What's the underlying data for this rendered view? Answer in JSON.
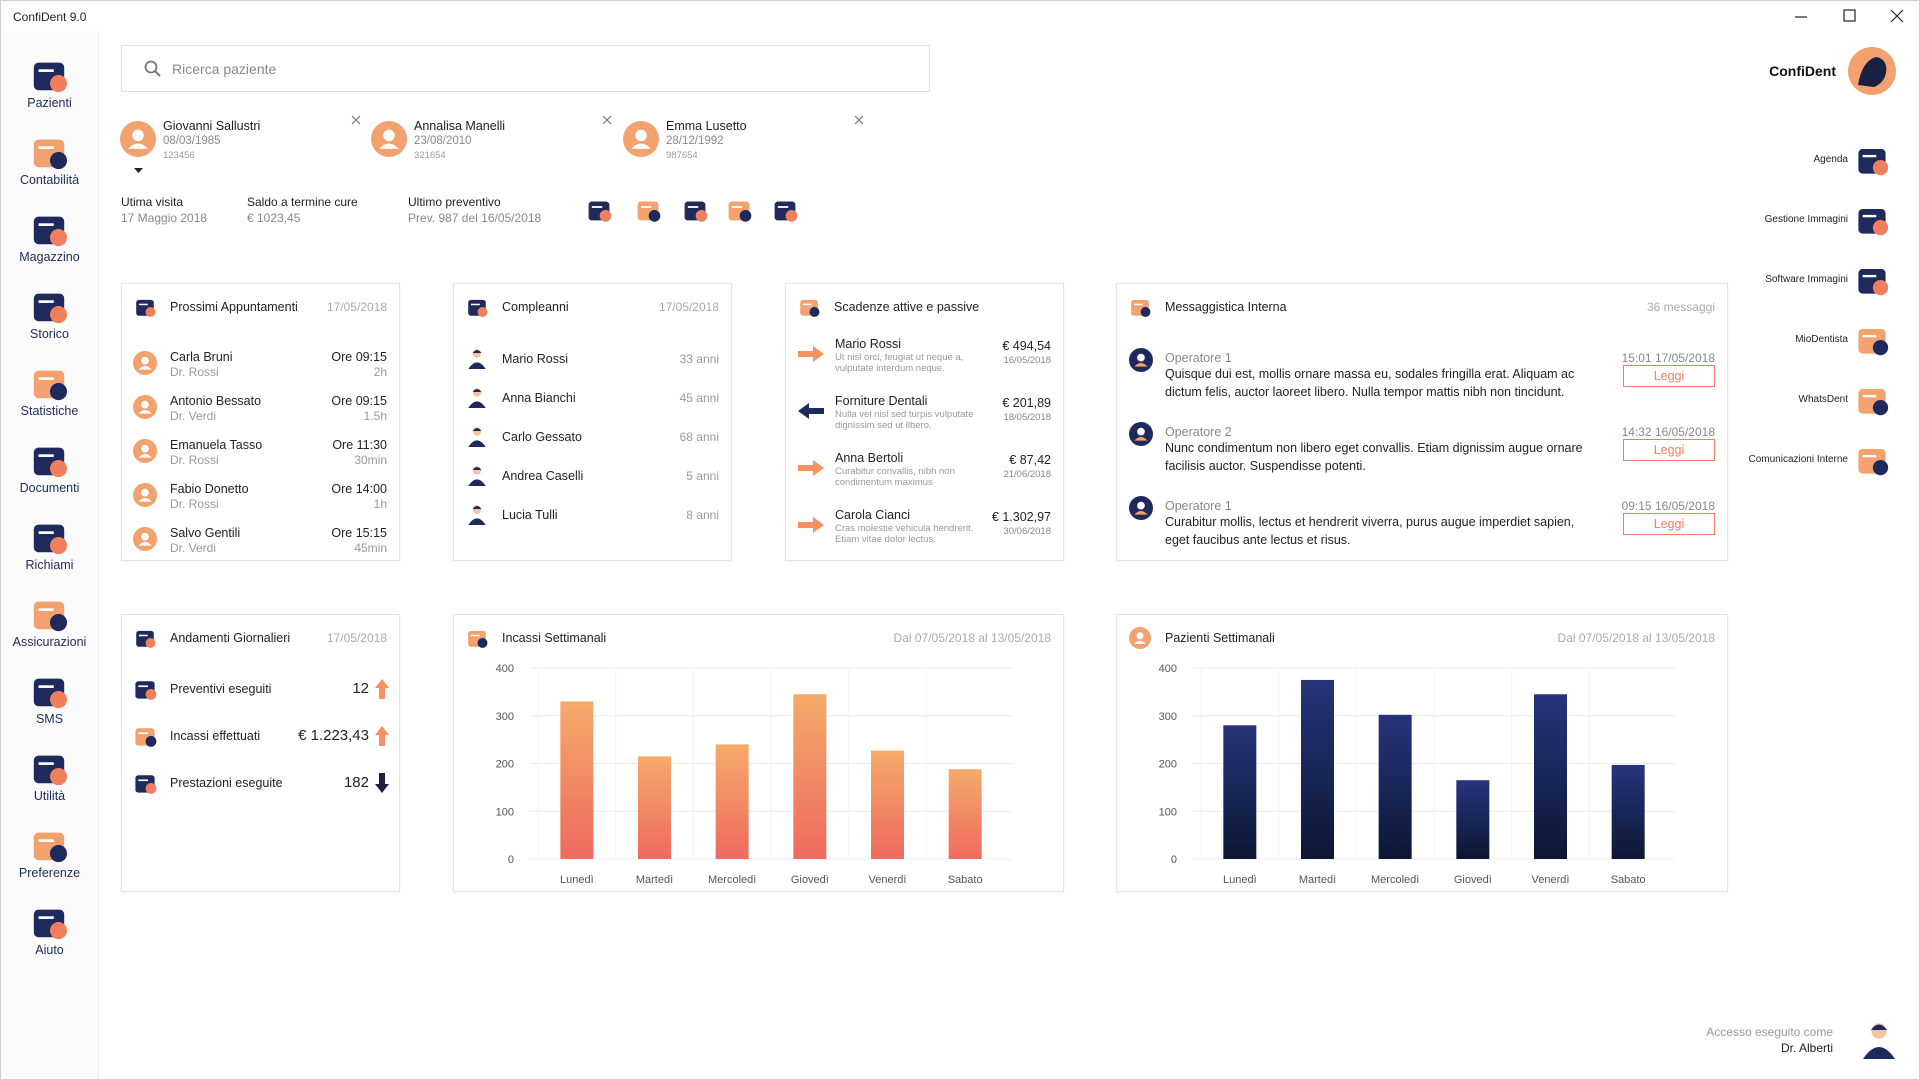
{
  "window": {
    "title": "ConfiDent 9.0"
  },
  "sidebar": [
    "Pazienti",
    "Contabilità",
    "Magazzino",
    "Storico",
    "Statistiche",
    "Documenti",
    "Richiami",
    "Assicurazioni",
    "SMS",
    "Utilità",
    "Preferenze",
    "Aiuto"
  ],
  "search": {
    "placeholder": "Ricerca paziente"
  },
  "patients": [
    {
      "name": "Giovanni Sallustri",
      "birth": "08/03/1985",
      "code": "123456"
    },
    {
      "name": "Annalisa Manelli",
      "birth": "23/08/2010",
      "code": "321654"
    },
    {
      "name": "Emma Lusetto",
      "birth": "28/12/1992",
      "code": "987654"
    }
  ],
  "summary": [
    {
      "label": "Utima visita",
      "value": "17 Maggio 2018"
    },
    {
      "label": "Saldo a termine cure",
      "value": "€ 1023,45"
    },
    {
      "label": "Ultimo preventivo",
      "value": "Prev. 987 del 16/05/2018"
    }
  ],
  "brand": "ConfiDent",
  "apps": [
    "Agenda",
    "Gestione Immagini",
    "Software Immagini",
    "MioDentista",
    "WhatsDent",
    "Comunicazioni Interne"
  ],
  "appointments": {
    "title": "Prossimi Appuntamenti",
    "date": "17/05/2018",
    "items": [
      {
        "name": "Carla Bruni",
        "doctor": "Dr. Rossi",
        "time": "Ore 09:15",
        "duration": "2h"
      },
      {
        "name": "Antonio Bessato",
        "doctor": "Dr. Verdi",
        "time": "Ore 09:15",
        "duration": "1.5h"
      },
      {
        "name": "Emanuela Tasso",
        "doctor": "Dr. Rossi",
        "time": "Ore 11:30",
        "duration": "30min"
      },
      {
        "name": "Fabio Donetto",
        "doctor": "Dr. Rossi",
        "time": "Ore 14:00",
        "duration": "1h"
      },
      {
        "name": "Salvo Gentili",
        "doctor": "Dr. Verdi",
        "time": "Ore 15:15",
        "duration": "45min"
      }
    ]
  },
  "birthdays": {
    "title": "Compleanni",
    "date": "17/05/2018",
    "items": [
      {
        "name": "Mario Rossi",
        "age": "33 anni"
      },
      {
        "name": "Anna Bianchi",
        "age": "45 anni"
      },
      {
        "name": "Carlo Gessato",
        "age": "68 anni"
      },
      {
        "name": "Andrea Caselli",
        "age": "5 anni"
      },
      {
        "name": "Lucia Tulli",
        "age": "8 anni"
      }
    ]
  },
  "deadlines": {
    "title": "Scadenze attive e passive",
    "items": [
      {
        "name": "Mario Rossi",
        "note": "Ut nisl orci, feugiat ut neque a, vulputate interdum neque.",
        "amount": "€ 494,54",
        "date": "16/05/2018",
        "direction": "in"
      },
      {
        "name": "Forniture Dentali",
        "note": "Nulla vel nisl sed turpis vulputate dignissim sed ut libero.",
        "amount": "€ 201,89",
        "date": "18/05/2018",
        "direction": "out"
      },
      {
        "name": "Anna Bertoli",
        "note": "Curabitur convallis, nibh non condimentum maximus",
        "amount": "€ 87,42",
        "date": "21/06/2018",
        "direction": "in"
      },
      {
        "name": "Carola Cianci",
        "note": "Cras molestie vehicula hendrerit. Etiam vitae dolor lectus.",
        "amount": "€ 1.302,97",
        "date": "30/06/2018",
        "direction": "in"
      }
    ]
  },
  "messages": {
    "title": "Messaggistica Interna",
    "count": "36 messaggi",
    "items": [
      {
        "sender": "Operatore 1",
        "time": "15:01 17/05/2018",
        "text": "Quisque dui est, mollis ornare massa eu, sodales fringilla erat. Aliquam ac dictum felis, auctor laoreet libero. Nulla tempor mattis nibh non tincidunt.",
        "action": "Leggi"
      },
      {
        "sender": "Operatore 2",
        "time": "14:32 16/05/2018",
        "text": "Nunc condimentum non libero eget convallis. Etiam dignissim augue ornare facilisis auctor. Suspendisse potenti.",
        "action": "Leggi"
      },
      {
        "sender": "Operatore 1",
        "time": "09:15 16/05/2018",
        "text": "Curabitur mollis, lectus et hendrerit viverra, purus augue imperdiet sapien, eget faucibus ante lectus et risus.",
        "action": "Leggi"
      }
    ]
  },
  "daily": {
    "title": "Andamenti Giornalieri",
    "date": "17/05/2018",
    "items": [
      {
        "label": "Preventivi eseguiti",
        "value": 12,
        "trend": "up"
      },
      {
        "label": "Incassi effettuati",
        "value": "€ 1.223,43",
        "trend": "up"
      },
      {
        "label": "Prestazioni eseguite",
        "value": 182,
        "trend": "down"
      }
    ]
  },
  "charts": [
    {
      "type": "bar",
      "title": "Incassi Settimanali",
      "subtitle": "Dal 07/05/2018 al 13/05/2018",
      "categories": [
        "Lunedì",
        "Martedì",
        "Mercoledì",
        "Giovedì",
        "Venerdì",
        "Sabato"
      ],
      "values": [
        330,
        215,
        240,
        345,
        227,
        188
      ],
      "colors": [
        "#f5ab6a",
        "#ee6a5f"
      ],
      "ylim": [
        0,
        400
      ],
      "yticks": [
        0,
        100,
        200,
        300,
        400
      ],
      "grid": true
    },
    {
      "type": "bar",
      "title": "Pazienti Settimanali",
      "subtitle": "Dal 07/05/2018 al 13/05/2018",
      "categories": [
        "Lunedì",
        "Martedì",
        "Mercoledì",
        "Giovedì",
        "Venerdì",
        "Sabato"
      ],
      "values": [
        280,
        375,
        302,
        165,
        345,
        197
      ],
      "colors": [
        "#27347b",
        "#0c1734"
      ],
      "ylim": [
        0,
        400
      ],
      "yticks": [
        0,
        100,
        200,
        300,
        400
      ],
      "grid": true
    }
  ],
  "footer": {
    "label": "Accesso eseguito come",
    "user": "Dr. Alberti"
  }
}
